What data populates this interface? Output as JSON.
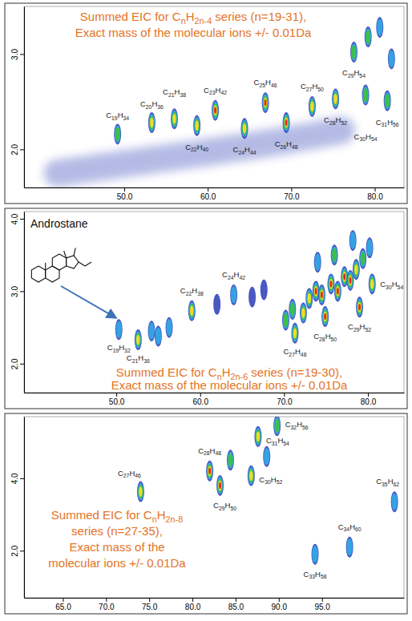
{
  "chart_data": [
    {
      "type": "scatter",
      "title": [
        "Summed EIC for CnH2n-4 series (n=19-31),",
        "Exact mass of the molecular ions +/- 0.01Da"
      ],
      "xlim": [
        38,
        83.5
      ],
      "xticks": [
        {
          "value": 50,
          "label": "50.0"
        },
        {
          "value": 60,
          "label": "60.0"
        },
        {
          "value": 70,
          "label": "70.0"
        },
        {
          "value": 80,
          "label": "80.0"
        }
      ],
      "ylim": [
        1.6,
        3.5
      ],
      "yticks": [
        {
          "value": 2,
          "label": "2.0"
        },
        {
          "value": 3,
          "label": "3.0"
        }
      ],
      "series": [
        {
          "type": "scatter",
          "x": [
            49.2,
            53.3,
            56.0,
            58.7,
            60.9,
            64.4,
            66.9,
            69.4,
            72.5,
            75.3,
            77.5,
            78.9,
            81.5,
            79.2,
            80.6,
            82.0
          ],
          "values": [
            2.16,
            2.28,
            2.32,
            2.25,
            2.41,
            2.22,
            2.49,
            2.28,
            2.45,
            2.53,
            3.02,
            2.57,
            2.51,
            3.18,
            3.28,
            2.95
          ],
          "labels": [
            "C19H34",
            "C20H36",
            "C21H38",
            "C22H40",
            "C23H42",
            "C24H44",
            "C25H46",
            "C26H48",
            "C27H50",
            "C28H52",
            "C29H54",
            "C30H54",
            "C31H56",
            null,
            null,
            null
          ],
          "intensity": [
            3,
            4,
            4,
            4,
            5,
            4,
            5,
            5,
            4,
            4,
            3,
            3,
            3,
            3,
            2,
            2
          ]
        },
        {
          "type": "line",
          "x": [
            42,
            50,
            60,
            70,
            76
          ],
          "values": [
            1.75,
            1.85,
            1.97,
            2.1,
            2.2
          ]
        }
      ]
    },
    {
      "type": "scatter",
      "title": [
        "Summed EIC for CnH2n-6 series (n=19-30),",
        "Exact mass of the molecular ions +/- 0.01Da"
      ],
      "annotation": "Androstane",
      "xlim": [
        39,
        84.3
      ],
      "xticks": [
        {
          "value": 50,
          "label": "50.0"
        },
        {
          "value": 60,
          "label": "60.0"
        },
        {
          "value": 70,
          "label": "70.0"
        },
        {
          "value": 80,
          "label": "80.0"
        }
      ],
      "ylim": [
        1.6,
        4.1
      ],
      "yticks": [
        {
          "value": 2,
          "label": "2.0"
        },
        {
          "value": 3,
          "label": "3.0"
        },
        {
          "value": 4,
          "label": "4.0"
        }
      ],
      "series": [
        {
          "type": "scatter",
          "x": [
            50.3,
            52.6,
            59.0,
            64.0,
            71.3,
            74.9,
            79.0,
            80.5,
            54.2,
            55.0,
            56.3,
            62.0,
            66.2,
            67.6,
            70.2,
            71.0,
            72.3,
            73.0,
            73.8,
            74.5,
            75.6,
            76.4,
            77.2,
            77.9,
            78.6,
            79.4,
            76.0,
            78.2,
            80.2,
            74.0
          ],
          "values": [
            2.47,
            2.33,
            2.73,
            2.95,
            2.42,
            2.65,
            2.78,
            3.1,
            2.45,
            2.38,
            2.5,
            2.82,
            2.92,
            3.02,
            2.6,
            2.75,
            2.7,
            2.9,
            3.0,
            2.95,
            3.1,
            3.0,
            3.2,
            3.15,
            3.3,
            3.45,
            3.5,
            3.7,
            3.6,
            3.4
          ],
          "labels": [
            "C19H32",
            "C21H36",
            "C22H38",
            "C24H42",
            "C27H48",
            "C28H50",
            "C29H52",
            "C30H54",
            null,
            null,
            null,
            null,
            null,
            null,
            null,
            null,
            null,
            null,
            null,
            null,
            null,
            null,
            null,
            null,
            null,
            null,
            null,
            null,
            null,
            null
          ],
          "intensity": [
            2,
            4,
            4,
            2,
            4,
            5,
            5,
            4,
            2,
            2,
            2,
            1,
            1,
            1,
            3,
            3,
            4,
            4,
            5,
            5,
            5,
            5,
            5,
            5,
            4,
            3,
            3,
            2,
            2,
            2
          ]
        }
      ]
    },
    {
      "type": "scatter",
      "title": [
        "Summed EIC for CnH2n-8",
        "series (n=27-35),",
        "Exact mass of the",
        "molecular ions +/- 0.01Da"
      ],
      "xlim": [
        60.5,
        104.5
      ],
      "xticks": [
        {
          "value": 65,
          "label": "65.0"
        },
        {
          "value": 70,
          "label": "70.0"
        },
        {
          "value": 75,
          "label": "75.0"
        },
        {
          "value": 80,
          "label": "80.0"
        },
        {
          "value": 85,
          "label": "85.0"
        },
        {
          "value": 90,
          "label": "90.0"
        },
        {
          "value": 95,
          "label": "95.0"
        }
      ],
      "ylim": [
        0.7,
        5.7
      ],
      "yticks": [
        {
          "value": 2,
          "label": "2.0"
        },
        {
          "value": 4,
          "label": "4.0"
        }
      ],
      "series": [
        {
          "type": "scatter",
          "x": [
            74.0,
            82.0,
            83.2,
            86.8,
            87.6,
            89.8,
            94.2,
            98.2,
            103.4,
            84.4,
            88.6
          ],
          "values": [
            3.63,
            4.2,
            3.8,
            4.07,
            5.15,
            5.45,
            1.9,
            2.1,
            3.35,
            4.5,
            4.6
          ],
          "labels": [
            "C27H46",
            "C28H48",
            "C29H50",
            "C30H52",
            "C31H54",
            "C32H56",
            "C33H58",
            "C34H60",
            "C35H62",
            null,
            null
          ],
          "intensity": [
            4,
            5,
            5,
            4,
            4,
            3,
            2,
            2,
            2,
            3,
            2
          ]
        }
      ]
    }
  ]
}
